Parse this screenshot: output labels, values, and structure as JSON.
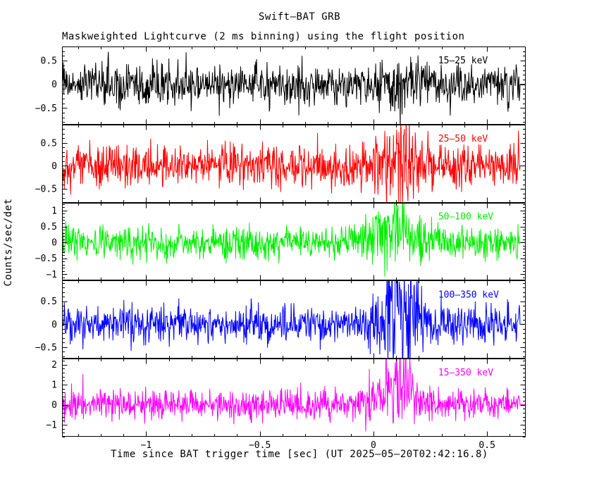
{
  "title": "Swift–BAT GRB",
  "subtitle": "Maskweighted Lightcurve (2 ms binning) using the flight position",
  "xlabel": "Time since BAT trigger time [sec] (UT 2025–05–20T02:42:16.8)",
  "ylabel": "Counts/sec/det",
  "colors": {
    "background": "#ffffff",
    "frame": "#000000"
  },
  "chart_data": {
    "type": "line",
    "title": "Swift–BAT GRB",
    "subtitle": "Maskweighted Lightcurve (2 ms binning) using the flight position",
    "xlabel": "Time since BAT trigger time [sec] (UT 2025–05–20T02:42:16.8)",
    "ylabel": "Counts/sec/det",
    "grid": false,
    "legend_position": "top-right-inside-each-panel",
    "bin_seconds": 0.002,
    "x_range": [
      -1.37,
      0.67
    ],
    "data_end": 0.645,
    "x_ticks": [
      -1,
      -0.5,
      0,
      0.5
    ],
    "x_tick_labels": [
      "−1",
      "−0.5",
      "0",
      "0.5"
    ],
    "x_minor_step": 0.1,
    "burst_description": "Noise-dominated mask-weighted lightcurves; burst of emission near t=0 to 0.25 s, strongest in 50-100, 100-350 and 15-350 keV bands",
    "panels": [
      {
        "label": "15–25 keV",
        "color": "#000000",
        "ylim": [
          -0.85,
          0.8
        ],
        "ytick_values": [
          0.5,
          0,
          -0.5
        ],
        "ytick_labels": [
          "0.5",
          "0",
          "−0.5"
        ],
        "y_minor_step": 0.1,
        "noise_sigma": 0.22,
        "burst": {
          "center": 0.1,
          "width": 0.1,
          "amplitude": 0.06,
          "noise_boost": 0.3
        },
        "seed": 101
      },
      {
        "label": "25–50 keV",
        "color": "#ff0000",
        "ylim": [
          -0.8,
          0.9
        ],
        "ytick_values": [
          0.5,
          0,
          -0.5
        ],
        "ytick_labels": [
          "0.5",
          "0",
          "−0.5"
        ],
        "y_minor_step": 0.1,
        "noise_sigma": 0.23,
        "burst": {
          "center": 0.1,
          "width": 0.1,
          "amplitude": 0.18,
          "noise_boost": 1.2
        },
        "seed": 202
      },
      {
        "label": "50–100 keV",
        "color": "#00ee00",
        "ylim": [
          -1.2,
          1.25
        ],
        "ytick_values": [
          1,
          0.5,
          0,
          -0.5,
          -1
        ],
        "ytick_labels": [
          "1",
          "0.5",
          "0",
          "−0.5",
          "−1"
        ],
        "y_minor_step": 0.1,
        "noise_sigma": 0.25,
        "burst": {
          "center": 0.1,
          "width": 0.11,
          "amplitude": 0.45,
          "noise_boost": 1.5
        },
        "seed": 303
      },
      {
        "label": "100–350 keV",
        "color": "#0000ff",
        "ylim": [
          -0.75,
          0.95
        ],
        "ytick_values": [
          0.5,
          0,
          -0.5
        ],
        "ytick_labels": [
          "0.5",
          "0",
          "−0.5"
        ],
        "y_minor_step": 0.1,
        "noise_sigma": 0.2,
        "burst": {
          "center": 0.11,
          "width": 0.09,
          "amplitude": 0.35,
          "noise_boost": 3.0
        },
        "seed": 404
      },
      {
        "label": "15–350 keV",
        "color": "#ff00ff",
        "ylim": [
          -1.6,
          2.3
        ],
        "ytick_values": [
          2,
          1,
          0,
          -1
        ],
        "ytick_labels": [
          "2",
          "1",
          "0",
          "−1"
        ],
        "y_minor_step": 0.2,
        "noise_sigma": 0.38,
        "burst": {
          "center": 0.1,
          "width": 0.1,
          "amplitude": 0.9,
          "noise_boost": 1.8
        },
        "seed": 505
      }
    ]
  }
}
